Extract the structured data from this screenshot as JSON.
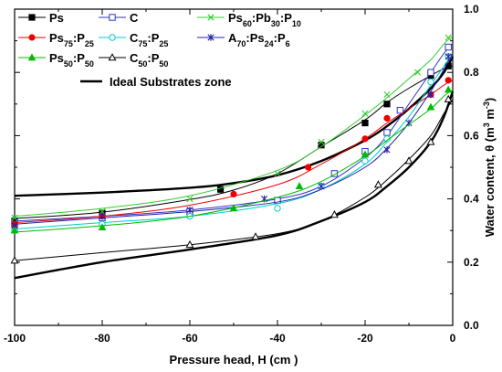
{
  "chart_data": {
    "type": "line",
    "xlabel": "Pressure head, H (cm )",
    "ylabel": "Water content, θ (m³ m⁻³)",
    "ylabel_parts": {
      "main": "Water content, θ (m",
      "sup1": "3",
      "mid": " m",
      "sup2": "-3",
      "end": ")"
    },
    "xlim": [
      -100,
      0
    ],
    "ylim": [
      0.0,
      1.0
    ],
    "x_ticks": [
      -100,
      -80,
      -60,
      -40,
      -20,
      0
    ],
    "y_ticks": [
      0.0,
      0.2,
      0.4,
      0.6,
      0.8,
      1.0
    ],
    "x_tick_labels": [
      "-100",
      "-80",
      "-60",
      "-40",
      "-20",
      "0"
    ],
    "y_tick_labels": [
      "0.0",
      "0.2",
      "0.4",
      "0.6",
      "0.8",
      "1.0"
    ],
    "legend_position": "top-left",
    "grid": false,
    "series": [
      {
        "name": "Ps",
        "name_parts": [
          [
            "Ps",
            ""
          ]
        ],
        "color": "#000000",
        "marker": "square-filled",
        "points": [
          [
            -100,
            0.33
          ],
          [
            -80,
            0.355
          ],
          [
            -53,
            0.43
          ],
          [
            -30,
            0.57
          ],
          [
            -20,
            0.64
          ],
          [
            -15,
            0.7
          ],
          [
            -5,
            0.79
          ],
          [
            -1,
            0.82
          ]
        ],
        "fit": [
          [
            -100,
            0.338
          ],
          [
            -80,
            0.358
          ],
          [
            -60,
            0.398
          ],
          [
            -50,
            0.428
          ],
          [
            -40,
            0.48
          ],
          [
            -30,
            0.565
          ],
          [
            -20,
            0.65
          ],
          [
            -15,
            0.705
          ],
          [
            -10,
            0.75
          ],
          [
            -5,
            0.79
          ],
          [
            -2,
            0.812
          ],
          [
            0,
            0.82
          ]
        ]
      },
      {
        "name": "C",
        "name_parts": [
          [
            "C",
            ""
          ]
        ],
        "color": "#3333cc",
        "marker": "square-open",
        "points": [
          [
            -100,
            0.32
          ],
          [
            -80,
            0.34
          ],
          [
            -60,
            0.36
          ],
          [
            -40,
            0.395
          ],
          [
            -27,
            0.48
          ],
          [
            -20,
            0.55
          ],
          [
            -15,
            0.61
          ],
          [
            -12,
            0.68
          ],
          [
            -5,
            0.8
          ],
          [
            -1,
            0.88
          ]
        ],
        "fit": [
          [
            -100,
            0.33
          ],
          [
            -80,
            0.345
          ],
          [
            -60,
            0.365
          ],
          [
            -40,
            0.4
          ],
          [
            -30,
            0.44
          ],
          [
            -20,
            0.53
          ],
          [
            -15,
            0.6
          ],
          [
            -10,
            0.7
          ],
          [
            -5,
            0.8
          ],
          [
            -2,
            0.86
          ],
          [
            0,
            0.89
          ]
        ]
      },
      {
        "name": "Ps60:Pb30:P10",
        "name_parts": [
          [
            "Ps",
            ""
          ],
          [
            "60",
            "sub"
          ],
          [
            ":Pb",
            ""
          ],
          [
            "30",
            "sub"
          ],
          [
            ":P",
            ""
          ],
          [
            "10",
            "sub"
          ]
        ],
        "color": "#33cc33",
        "marker": "x",
        "points": [
          [
            -100,
            0.34
          ],
          [
            -80,
            0.36
          ],
          [
            -60,
            0.4
          ],
          [
            -40,
            0.48
          ],
          [
            -30,
            0.58
          ],
          [
            -20,
            0.67
          ],
          [
            -15,
            0.73
          ],
          [
            -8,
            0.8
          ],
          [
            -1,
            0.91
          ]
        ],
        "fit": [
          [
            -100,
            0.345
          ],
          [
            -80,
            0.37
          ],
          [
            -60,
            0.41
          ],
          [
            -40,
            0.49
          ],
          [
            -30,
            0.565
          ],
          [
            -20,
            0.665
          ],
          [
            -15,
            0.72
          ],
          [
            -10,
            0.78
          ],
          [
            -5,
            0.84
          ],
          [
            -2,
            0.89
          ],
          [
            0,
            0.915
          ]
        ]
      },
      {
        "name": "Ps75:P25",
        "name_parts": [
          [
            "Ps",
            ""
          ],
          [
            "75",
            "sub"
          ],
          [
            ":P",
            ""
          ],
          [
            "25",
            "sub"
          ]
        ],
        "color": "#ee0000",
        "marker": "circle-filled",
        "points": [
          [
            -100,
            0.32
          ],
          [
            -80,
            0.345
          ],
          [
            -50,
            0.415
          ],
          [
            -33,
            0.5
          ],
          [
            -20,
            0.59
          ],
          [
            -15,
            0.655
          ],
          [
            -5,
            0.73
          ],
          [
            -1,
            0.775
          ]
        ],
        "fit": [
          [
            -100,
            0.325
          ],
          [
            -80,
            0.345
          ],
          [
            -60,
            0.38
          ],
          [
            -40,
            0.445
          ],
          [
            -30,
            0.51
          ],
          [
            -20,
            0.59
          ],
          [
            -15,
            0.64
          ],
          [
            -10,
            0.685
          ],
          [
            -5,
            0.73
          ],
          [
            -2,
            0.76
          ],
          [
            0,
            0.775
          ]
        ]
      },
      {
        "name": "C75:P25",
        "name_parts": [
          [
            "C",
            ""
          ],
          [
            "75",
            "sub"
          ],
          [
            ":P",
            ""
          ],
          [
            "25",
            "sub"
          ]
        ],
        "color": "#00cccc",
        "marker": "circle-open",
        "points": [
          [
            -100,
            0.3
          ],
          [
            -80,
            0.32
          ],
          [
            -60,
            0.345
          ],
          [
            -40,
            0.37
          ],
          [
            -30,
            0.44
          ],
          [
            -20,
            0.52
          ],
          [
            -15,
            0.59
          ],
          [
            -5,
            0.77
          ],
          [
            -1,
            0.85
          ]
        ],
        "fit": [
          [
            -100,
            0.305
          ],
          [
            -80,
            0.325
          ],
          [
            -60,
            0.345
          ],
          [
            -40,
            0.385
          ],
          [
            -30,
            0.43
          ],
          [
            -20,
            0.51
          ],
          [
            -15,
            0.58
          ],
          [
            -10,
            0.66
          ],
          [
            -5,
            0.76
          ],
          [
            -2,
            0.82
          ],
          [
            0,
            0.86
          ]
        ]
      },
      {
        "name": "A70:Ps24:P6",
        "name_parts": [
          [
            "A",
            ""
          ],
          [
            "70",
            "sub"
          ],
          [
            ":Ps",
            ""
          ],
          [
            "24",
            "sub"
          ],
          [
            ":P",
            ""
          ],
          [
            "6",
            "sub"
          ]
        ],
        "color": "#2222aa",
        "marker": "asterisk",
        "points": [
          [
            -100,
            0.315
          ],
          [
            -80,
            0.345
          ],
          [
            -60,
            0.365
          ],
          [
            -43,
            0.4
          ],
          [
            -30,
            0.44
          ],
          [
            -15,
            0.555
          ],
          [
            -10,
            0.64
          ],
          [
            -5,
            0.73
          ],
          [
            -1,
            0.85
          ]
        ],
        "fit": [
          [
            -100,
            0.32
          ],
          [
            -80,
            0.34
          ],
          [
            -60,
            0.36
          ],
          [
            -40,
            0.39
          ],
          [
            -30,
            0.43
          ],
          [
            -20,
            0.5
          ],
          [
            -15,
            0.56
          ],
          [
            -10,
            0.64
          ],
          [
            -5,
            0.74
          ],
          [
            -2,
            0.81
          ],
          [
            0,
            0.86
          ]
        ]
      },
      {
        "name": "Ps50:P50",
        "name_parts": [
          [
            "Ps",
            ""
          ],
          [
            "50",
            "sub"
          ],
          [
            ":P",
            ""
          ],
          [
            "50",
            "sub"
          ]
        ],
        "color": "#00bb00",
        "marker": "triangle-filled",
        "points": [
          [
            -100,
            0.3
          ],
          [
            -80,
            0.31
          ],
          [
            -50,
            0.37
          ],
          [
            -35,
            0.44
          ],
          [
            -20,
            0.54
          ],
          [
            -5,
            0.69
          ],
          [
            -1,
            0.745
          ]
        ],
        "fit": [
          [
            -100,
            0.295
          ],
          [
            -80,
            0.315
          ],
          [
            -60,
            0.345
          ],
          [
            -40,
            0.405
          ],
          [
            -30,
            0.455
          ],
          [
            -20,
            0.535
          ],
          [
            -15,
            0.585
          ],
          [
            -10,
            0.635
          ],
          [
            -5,
            0.685
          ],
          [
            -2,
            0.725
          ],
          [
            0,
            0.745
          ]
        ]
      },
      {
        "name": "C50:P50",
        "name_parts": [
          [
            "C",
            ""
          ],
          [
            "50",
            "sub"
          ],
          [
            ":P",
            ""
          ],
          [
            "50",
            "sub"
          ]
        ],
        "color": "#000000",
        "marker": "triangle-open",
        "points": [
          [
            -100,
            0.205
          ],
          [
            -60,
            0.255
          ],
          [
            -45,
            0.28
          ],
          [
            -27,
            0.35
          ],
          [
            -17,
            0.445
          ],
          [
            -10,
            0.52
          ],
          [
            -5,
            0.58
          ],
          [
            -1,
            0.715
          ]
        ],
        "fit": [
          [
            -100,
            0.205
          ],
          [
            -80,
            0.23
          ],
          [
            -60,
            0.255
          ],
          [
            -40,
            0.29
          ],
          [
            -30,
            0.33
          ],
          [
            -20,
            0.405
          ],
          [
            -15,
            0.46
          ],
          [
            -10,
            0.525
          ],
          [
            -5,
            0.6
          ],
          [
            -2,
            0.67
          ],
          [
            0,
            0.715
          ]
        ]
      }
    ],
    "ideal_zone": {
      "name": "Ideal Substrates zone",
      "color": "#000000",
      "upper": [
        [
          -100,
          0.41
        ],
        [
          -80,
          0.42
        ],
        [
          -60,
          0.435
        ],
        [
          -50,
          0.45
        ],
        [
          -40,
          0.475
        ],
        [
          -30,
          0.52
        ],
        [
          -20,
          0.585
        ],
        [
          -15,
          0.63
        ],
        [
          -10,
          0.685
        ],
        [
          -5,
          0.75
        ],
        [
          -2,
          0.8
        ],
        [
          0,
          0.85
        ]
      ],
      "lower": [
        [
          -100,
          0.15
        ],
        [
          -80,
          0.2
        ],
        [
          -60,
          0.24
        ],
        [
          -40,
          0.285
        ],
        [
          -30,
          0.33
        ],
        [
          -20,
          0.39
        ],
        [
          -15,
          0.44
        ],
        [
          -10,
          0.5
        ],
        [
          -5,
          0.58
        ],
        [
          -2,
          0.66
        ],
        [
          0,
          0.74
        ]
      ]
    }
  }
}
